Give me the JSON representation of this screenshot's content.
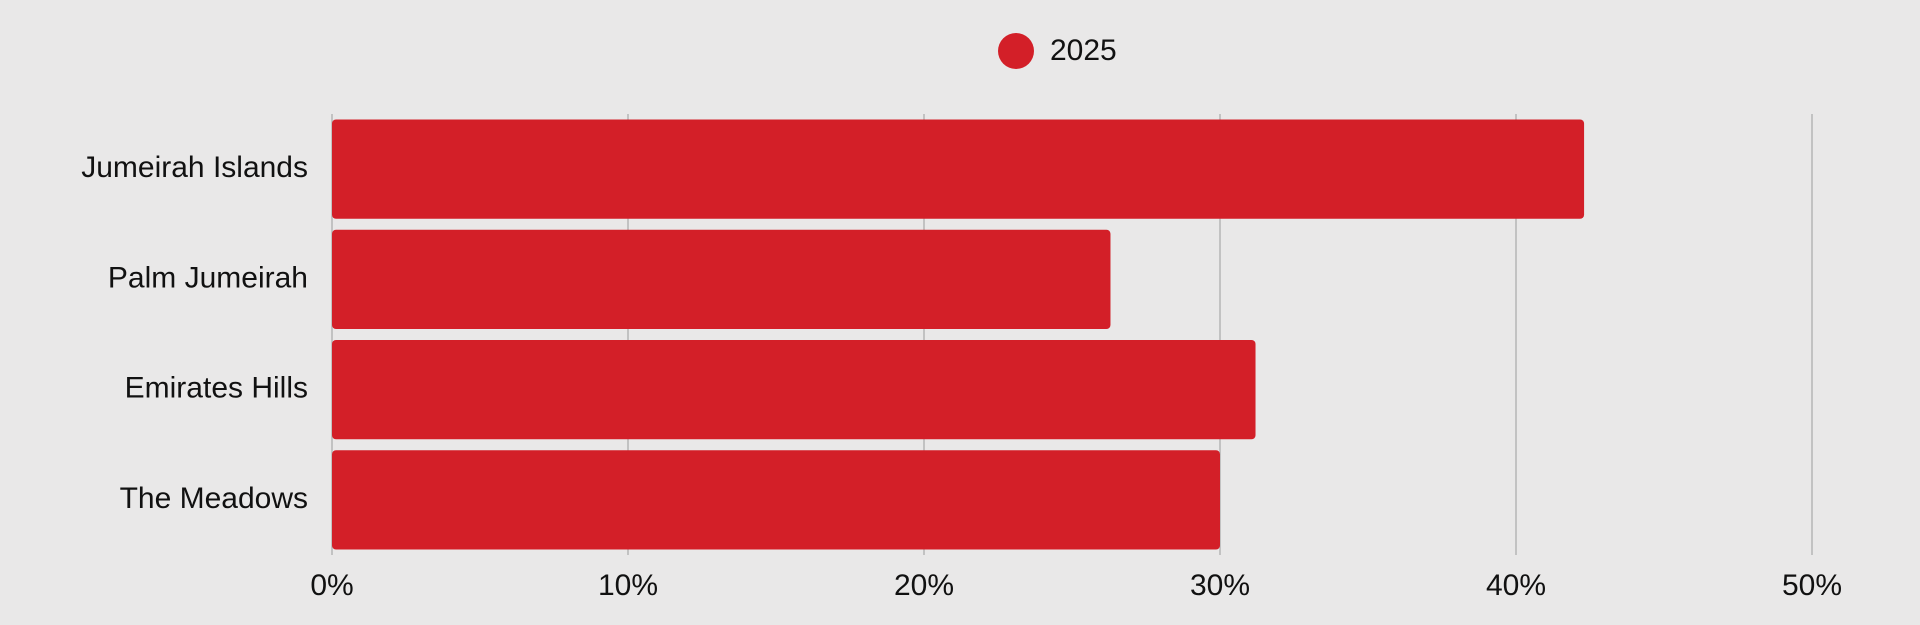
{
  "chart_data": {
    "type": "hbar",
    "categories": [
      "Jumeirah Islands",
      "Palm Jumeirah",
      "Emirates Hills",
      "The Meadows"
    ],
    "series": [
      {
        "name": "2025",
        "color": "#d31f28",
        "values": [
          42.3,
          26.3,
          31.2,
          30.0
        ]
      }
    ],
    "xlim": [
      0,
      50
    ],
    "xticks": [
      {
        "value": 0,
        "label": "0%"
      },
      {
        "value": 10,
        "label": "10%"
      },
      {
        "value": 20,
        "label": "20%"
      },
      {
        "value": 30,
        "label": "30%"
      },
      {
        "value": 40,
        "label": "40%"
      },
      {
        "value": 50,
        "label": "50%"
      }
    ],
    "grid": true,
    "legend": "top"
  }
}
